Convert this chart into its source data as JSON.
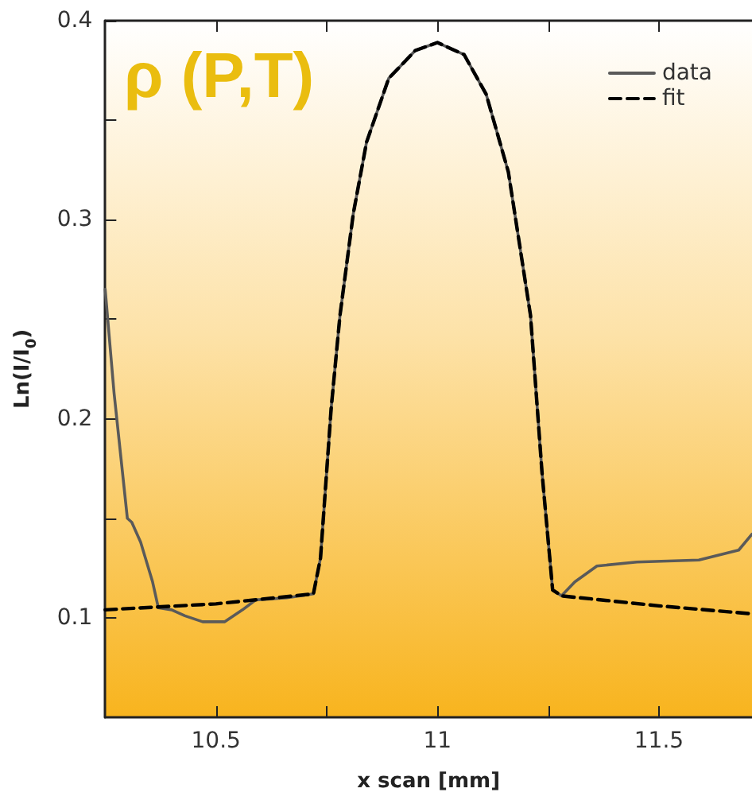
{
  "chart_data": {
    "type": "line",
    "xlabel": "x scan [mm]",
    "ylabel": "Ln(I/I$_{0}$)",
    "annotations": [
      "ρ (P,T)"
    ],
    "xlim": [
      10.25,
      11.71
    ],
    "ylim": [
      0.05,
      0.4
    ],
    "xticks": [
      10.5,
      {
        "value": 10.75,
        "label": null
      },
      11,
      {
        "value": 11.25,
        "label": null
      },
      11.5
    ],
    "yticks": [
      0.1,
      {
        "value": 0.15,
        "label": null
      },
      0.2,
      {
        "value": 0.25,
        "label": null
      },
      0.3,
      {
        "value": 0.35,
        "label": null
      },
      0.4
    ],
    "grid": false,
    "legend": "top right",
    "marker": "none",
    "series": [
      {
        "name": "data",
        "color": "#5a5a5a",
        "line_style": "solid",
        "x": [
          10.25,
          10.27,
          10.3,
          10.31,
          10.33,
          10.357,
          10.37,
          10.4,
          10.43,
          10.47,
          10.52,
          10.56,
          10.59,
          10.66,
          10.72,
          10.736,
          10.76,
          10.78,
          10.81,
          10.84,
          10.89,
          10.95,
          11.0,
          11.06,
          11.11,
          11.16,
          11.21,
          11.236,
          11.26,
          11.28,
          11.31,
          11.36,
          11.45,
          11.59,
          11.68,
          11.71
        ],
        "values": [
          0.265,
          0.213,
          0.15,
          0.148,
          0.138,
          0.118,
          0.105,
          0.104,
          0.101,
          0.098,
          0.098,
          0.104,
          0.109,
          0.11,
          0.112,
          0.13,
          0.205,
          0.252,
          0.303,
          0.339,
          0.371,
          0.385,
          0.389,
          0.383,
          0.363,
          0.324,
          0.252,
          0.173,
          0.114,
          0.111,
          0.118,
          0.126,
          0.128,
          0.129,
          0.134,
          0.142
        ]
      },
      {
        "name": "fit",
        "color": "#000000",
        "line_style": "dashed",
        "x": [
          10.25,
          10.5,
          10.72,
          10.736,
          10.76,
          10.78,
          10.81,
          10.84,
          10.89,
          10.95,
          11.0,
          11.06,
          11.11,
          11.16,
          11.21,
          11.236,
          11.26,
          11.28,
          11.5,
          11.71
        ],
        "values": [
          0.104,
          0.107,
          0.112,
          0.13,
          0.205,
          0.252,
          0.303,
          0.339,
          0.371,
          0.385,
          0.389,
          0.383,
          0.363,
          0.324,
          0.252,
          0.173,
          0.114,
          0.111,
          0.106,
          0.102
        ]
      }
    ]
  }
}
